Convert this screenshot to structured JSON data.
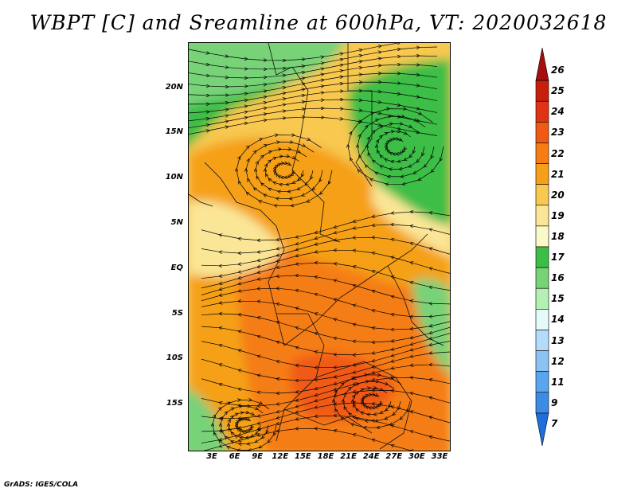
{
  "title": "WBPT [C] and Sreamline at 600hPa, VT: 2020032618",
  "footer": "GrADS: IGES/COLA",
  "lat_labels": [
    "20N",
    "15N",
    "10N",
    "5N",
    "EQ",
    "5S",
    "10S",
    "15S"
  ],
  "lon_labels": [
    "3E",
    "6E",
    "9E",
    "12E",
    "15E",
    "18E",
    "21E",
    "24E",
    "27E",
    "30E",
    "33E"
  ],
  "colorbar": {
    "labels": [
      "26",
      "25",
      "24",
      "23",
      "22",
      "21",
      "20",
      "19",
      "18",
      "17",
      "16",
      "15",
      "14",
      "13",
      "12",
      "11",
      "9",
      "7"
    ],
    "colors": [
      "#a50f0f",
      "#c81e0c",
      "#e03214",
      "#f05a14",
      "#f57d14",
      "#f5a018",
      "#f8c850",
      "#fae696",
      "#fafac8",
      "#3cbe46",
      "#78d278",
      "#b4f0b4",
      "#e6fafa",
      "#b4dcfa",
      "#8cc3f5",
      "#5aa5f0",
      "#3c8ce6",
      "#1e6edc"
    ]
  },
  "map_colors": {
    "green_dark": "#3cbe46",
    "green_mid": "#78d278",
    "green_light": "#b4f0b4",
    "yellow_pale": "#fafac8",
    "yellow": "#fae696",
    "orange_light": "#f8c850",
    "orange": "#f5a018",
    "orange_dark": "#f57d14",
    "red": "#f05a14"
  }
}
